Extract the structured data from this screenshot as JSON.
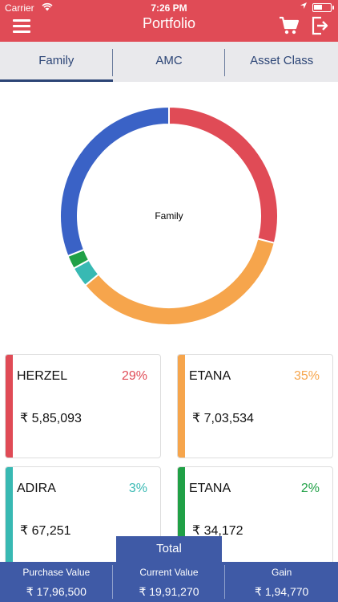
{
  "status_bar": {
    "carrier": "Carrier",
    "time": "7:26 PM"
  },
  "header": {
    "title": "Portfolio"
  },
  "tabs": [
    {
      "label": "Family"
    },
    {
      "label": "AMC"
    },
    {
      "label": "Asset Class"
    }
  ],
  "colors": {
    "header": "#e04b56",
    "accent": "#3f5aa6"
  },
  "chart_data": {
    "type": "pie",
    "center_label": "Family",
    "series": [
      {
        "label": "HERZEL",
        "value": 29,
        "color": "#e04b56"
      },
      {
        "label": "ETANA",
        "value": 35,
        "color": "#f6a54c"
      },
      {
        "label": "ADIRA",
        "value": 3,
        "color": "#38b9b3"
      },
      {
        "label": "ETANA",
        "value": 2,
        "color": "#20a046"
      },
      {
        "label": "",
        "value": 31,
        "color": "#3a62c6"
      }
    ]
  },
  "cards": [
    {
      "name": "HERZEL",
      "percent": "29%",
      "amount": "₹ 5,85,093",
      "color": "#e04b56"
    },
    {
      "name": "ETANA",
      "percent": "35%",
      "amount": "₹ 7,03,534",
      "color": "#f6a54c"
    },
    {
      "name": "ADIRA",
      "percent": "3%",
      "amount": "₹ 67,251",
      "color": "#38b9b3"
    },
    {
      "name": "ETANA",
      "percent": "2%",
      "amount": "₹ 34,172",
      "color": "#20a046"
    }
  ],
  "total": {
    "label": "Total",
    "columns": [
      {
        "label": "Purchase Value",
        "value": "₹ 17,96,500"
      },
      {
        "label": "Current Value",
        "value": "₹ 19,91,270"
      },
      {
        "label": "Gain",
        "value": "₹ 1,94,770"
      }
    ]
  }
}
